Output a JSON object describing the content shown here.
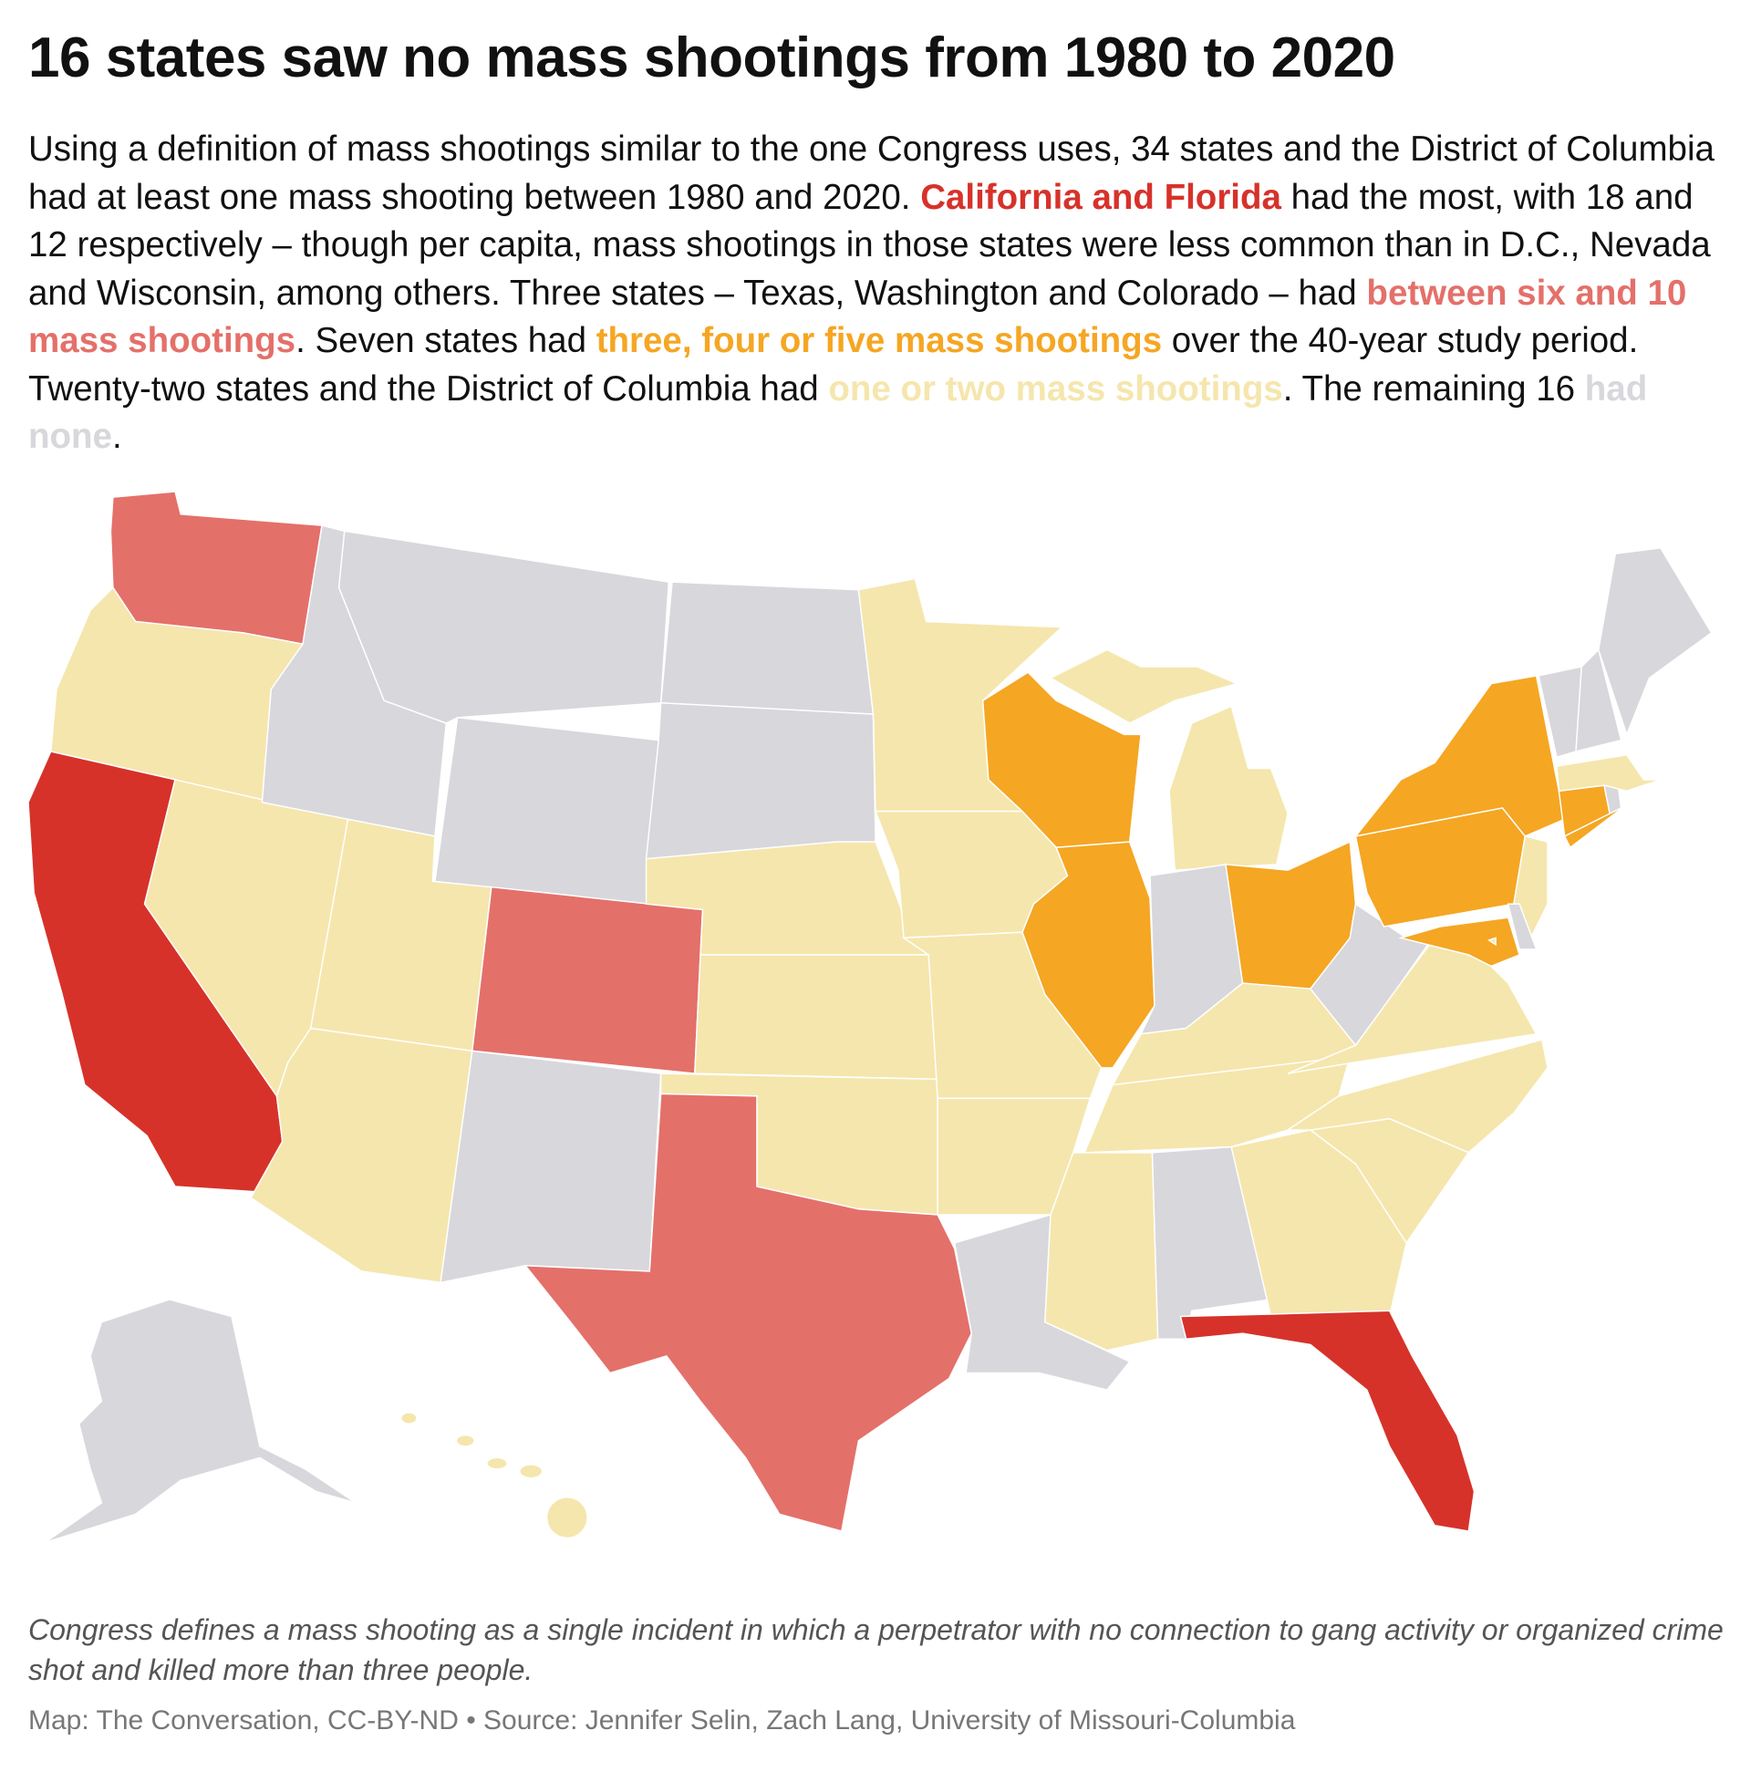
{
  "title": "16 states saw no mass shootings from 1980 to 2020",
  "intro": {
    "p1": "Using a definition of mass shootings similar to the one Congress uses, 34 states and the District of Columbia had at least one mass shooting between 1980 and 2020. ",
    "hl_most": "California and Florida",
    "p2": " had the most, with 18 and 12 respectively – though per capita, mass shootings in those states were less common than in D.C., Nevada and Wisconsin, among others. Three states – Texas, Washington and Colorado – had ",
    "hl_6_10": "between six and 10 mass shootings",
    "p3": ". Seven states had ",
    "hl_3_5": "three, four or five mass shootings",
    "p4": " over the 40-year study period. Twenty-two states and the District of Columbia had ",
    "hl_1_2": "one or two mass shootings",
    "p5": ". The remaining 16 ",
    "hl_none": "had none",
    "p6": "."
  },
  "colors": {
    "most": "#d6322a",
    "six_to_ten": "#e4706a",
    "three_to_five": "#f5a623",
    "one_to_two": "#f5e6ad",
    "none": "#d7d7dc"
  },
  "states": {
    "WA": "six_to_ten",
    "OR": "one_to_two",
    "CA": "most",
    "NV": "one_to_two",
    "ID": "none",
    "MT": "none",
    "WY": "none",
    "UT": "one_to_two",
    "CO": "six_to_ten",
    "AZ": "one_to_two",
    "NM": "none",
    "ND": "none",
    "SD": "none",
    "NE": "one_to_two",
    "KS": "one_to_two",
    "OK": "one_to_two",
    "TX": "six_to_ten",
    "MN": "one_to_two",
    "IA": "one_to_two",
    "MO": "one_to_two",
    "AR": "one_to_two",
    "LA": "none",
    "WI": "three_to_five",
    "IL": "three_to_five",
    "MI": "one_to_two",
    "IN": "none",
    "OH": "three_to_five",
    "KY": "one_to_two",
    "TN": "one_to_two",
    "MS": "one_to_two",
    "AL": "none",
    "GA": "one_to_two",
    "FL": "most",
    "SC": "one_to_two",
    "NC": "one_to_two",
    "VA": "one_to_two",
    "WV": "none",
    "PA": "three_to_five",
    "NY": "three_to_five",
    "NJ": "one_to_two",
    "DE": "none",
    "MD": "three_to_five",
    "CT": "three_to_five",
    "RI": "none",
    "MA": "one_to_two",
    "VT": "none",
    "NH": "none",
    "ME": "none",
    "AK": "none",
    "HI": "one_to_two",
    "DC": "one_to_two"
  },
  "note": "Congress defines a mass shooting as a single incident in which a perpetrator with no connection to gang activity or organized crime shot and killed more than three people.",
  "source": "Map: The Conversation, CC-BY-ND • Source: Jennifer Selin, Zach Lang, University of Missouri-Columbia"
}
